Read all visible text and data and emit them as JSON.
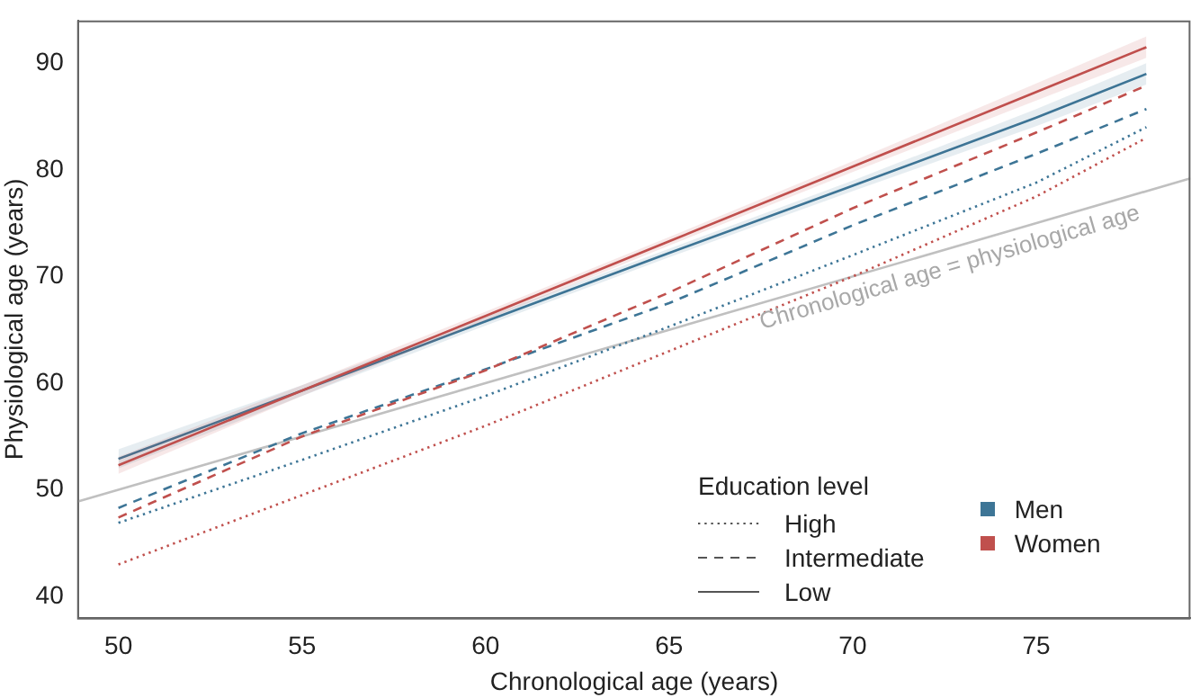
{
  "chart_data": {
    "type": "line",
    "xlabel": "Chronological age (years)",
    "ylabel": "Physiological age (years)",
    "legend_title": "Education level",
    "x": [
      50,
      55,
      60,
      65,
      70,
      75,
      78
    ],
    "xlim": [
      48.9,
      79.2
    ],
    "ylim": [
      38,
      94
    ],
    "xticks": [
      50,
      55,
      60,
      65,
      70,
      75
    ],
    "yticks": [
      40,
      50,
      60,
      70,
      80,
      90
    ],
    "grid": false,
    "legend": "bottom right",
    "marker": "none",
    "series": [
      {
        "color": "#c0504d",
        "line_style": "solid",
        "values": [
          52.3,
          59.3,
          66.3,
          73.3,
          80.3,
          87.3,
          91.5
        ],
        "lower": [
          51.5,
          58.8,
          65.9,
          72.9,
          79.8,
          86.5,
          90.5
        ],
        "upper": [
          53.1,
          59.8,
          66.7,
          73.7,
          80.8,
          88.1,
          92.5
        ]
      },
      {
        "color": "#3d7596",
        "line_style": "solid",
        "values": [
          52.9,
          59.3,
          65.8,
          72.2,
          78.5,
          84.9,
          89.0
        ],
        "lower": [
          52.0,
          58.8,
          65.4,
          71.8,
          78.0,
          84.1,
          88.0
        ],
        "upper": [
          53.8,
          59.8,
          66.2,
          72.6,
          79.0,
          85.7,
          90.0
        ]
      },
      {
        "color": "#c0504d",
        "line_style": "dashed",
        "values": [
          47.4,
          55.0,
          61.2,
          68.5,
          76.4,
          83.5,
          87.9
        ]
      },
      {
        "color": "#3d7596",
        "line_style": "dashed",
        "values": [
          48.3,
          55.3,
          61.3,
          67.5,
          74.8,
          81.5,
          85.7
        ]
      },
      {
        "color": "#3d7596",
        "line_style": "dotted",
        "values": [
          46.9,
          52.8,
          58.8,
          65.3,
          72.0,
          78.8,
          84.0
        ]
      },
      {
        "color": "#c0504d",
        "line_style": "dotted",
        "values": [
          43.0,
          49.5,
          56.0,
          63.0,
          70.0,
          77.5,
          83.0
        ]
      },
      {
        "type": "line",
        "color": "#c0c0c0",
        "line_style": "solid",
        "x": [
          48.9,
          79.2
        ],
        "values": [
          48.9,
          79.2
        ]
      },
      {
        "name": "High",
        "color": "#555555",
        "line_style": "dotted",
        "values": [
          null,
          null,
          null,
          null,
          null,
          null,
          null
        ]
      },
      {
        "name": "Intermediate",
        "color": "#555555",
        "line_style": "dashed",
        "values": [
          null,
          null,
          null,
          null,
          null,
          null,
          null
        ]
      },
      {
        "name": "Low",
        "color": "#555555",
        "line_style": "solid",
        "values": [
          null,
          null,
          null,
          null,
          null,
          null,
          null
        ]
      },
      {
        "name": "Men",
        "color": "#3d7596",
        "marker": "square",
        "values": [
          null,
          null,
          null,
          null,
          null,
          null,
          null
        ]
      },
      {
        "name": "Women",
        "color": "#c0504d",
        "marker": "square",
        "values": [
          null,
          null,
          null,
          null,
          null,
          null,
          null
        ]
      }
    ],
    "annotations": [
      {
        "text": "Chronological age = physiological age",
        "x": 72.5,
        "y": 72.5
      }
    ]
  }
}
